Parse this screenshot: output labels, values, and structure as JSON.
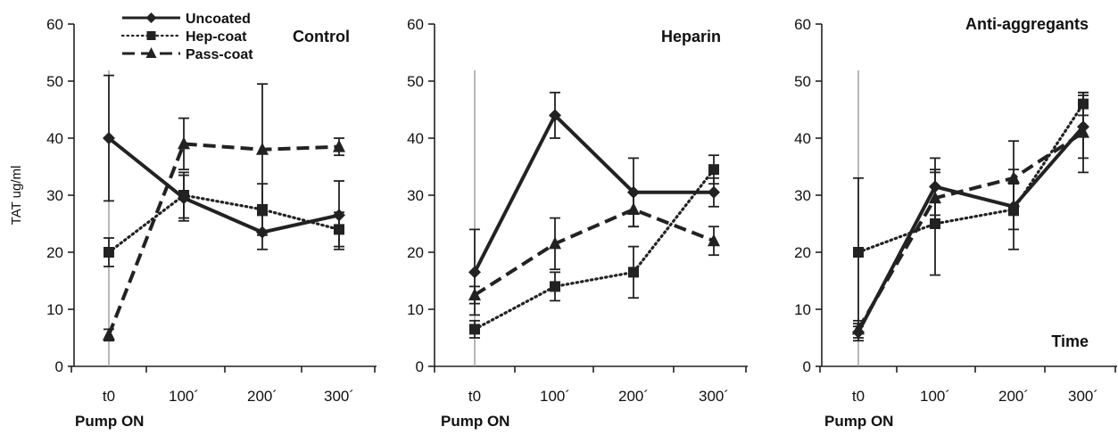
{
  "chart_data": [
    {
      "type": "line",
      "title": "Control",
      "ylabel": "TAT ug/ml",
      "ylim": [
        0,
        60
      ],
      "yticks": [
        0,
        10,
        20,
        30,
        40,
        50,
        60
      ],
      "categories": [
        "t0",
        "100´",
        "200´",
        "300´"
      ],
      "x_annotation": "Pump ON",
      "legend": {
        "position": "top-left"
      },
      "series": [
        {
          "name": "Uncoated",
          "marker": "diamond",
          "dash": "solid",
          "values": [
            40,
            29.5,
            23.5,
            26.5
          ],
          "errors": [
            11,
            4,
            3,
            6
          ]
        },
        {
          "name": "Hep-coat",
          "marker": "square",
          "dash": "dotted",
          "values": [
            20,
            30,
            27.5,
            24
          ],
          "errors": [
            2.5,
            4,
            4.5,
            3
          ]
        },
        {
          "name": "Pass-coat",
          "marker": "triangle",
          "dash": "dashed",
          "values": [
            5.5,
            39,
            38,
            38.5
          ],
          "errors": [
            1,
            4.5,
            11.5,
            1.5
          ]
        }
      ]
    },
    {
      "type": "line",
      "title": "Heparin",
      "ylim": [
        0,
        60
      ],
      "yticks": [
        0,
        10,
        20,
        30,
        40,
        50,
        60
      ],
      "categories": [
        "t0",
        "100´",
        "200´",
        "300´"
      ],
      "x_annotation": "Pump ON",
      "series": [
        {
          "name": "Uncoated",
          "marker": "diamond",
          "dash": "solid",
          "values": [
            16.5,
            44,
            30.5,
            30.5
          ],
          "errors": [
            7.5,
            4,
            6,
            2.5
          ]
        },
        {
          "name": "Hep-coat",
          "marker": "square",
          "dash": "dotted",
          "values": [
            6.5,
            14,
            16.5,
            34.5
          ],
          "errors": [
            1.5,
            2.5,
            4.5,
            2.5
          ]
        },
        {
          "name": "Pass-coat",
          "marker": "triangle",
          "dash": "dashed",
          "values": [
            12.5,
            21.5,
            27.5,
            22
          ],
          "errors": [
            1.5,
            4.5,
            3,
            2.5
          ]
        }
      ]
    },
    {
      "type": "line",
      "title": "Anti-aggregants",
      "ylim": [
        0,
        60
      ],
      "yticks": [
        0,
        10,
        20,
        30,
        40,
        50,
        60
      ],
      "categories": [
        "t0",
        "100´",
        "200´",
        "300´"
      ],
      "x_annotation": "Pump ON",
      "axis_annotation": "Time",
      "series": [
        {
          "name": "Uncoated",
          "marker": "diamond",
          "dash": "solid",
          "values": [
            6,
            31.5,
            28,
            42
          ],
          "errors": [
            1.5,
            5,
            4,
            5.5
          ]
        },
        {
          "name": "Hep-coat",
          "marker": "square",
          "dash": "dotted",
          "values": [
            20,
            25,
            27.5,
            46
          ],
          "errors": [
            13,
            9,
            7,
            2
          ]
        },
        {
          "name": "Pass-coat",
          "marker": "triangle",
          "dash": "dashed",
          "values": [
            6.5,
            29.5,
            33,
            41
          ],
          "errors": [
            1.5,
            5,
            6.5,
            7
          ]
        }
      ]
    }
  ]
}
